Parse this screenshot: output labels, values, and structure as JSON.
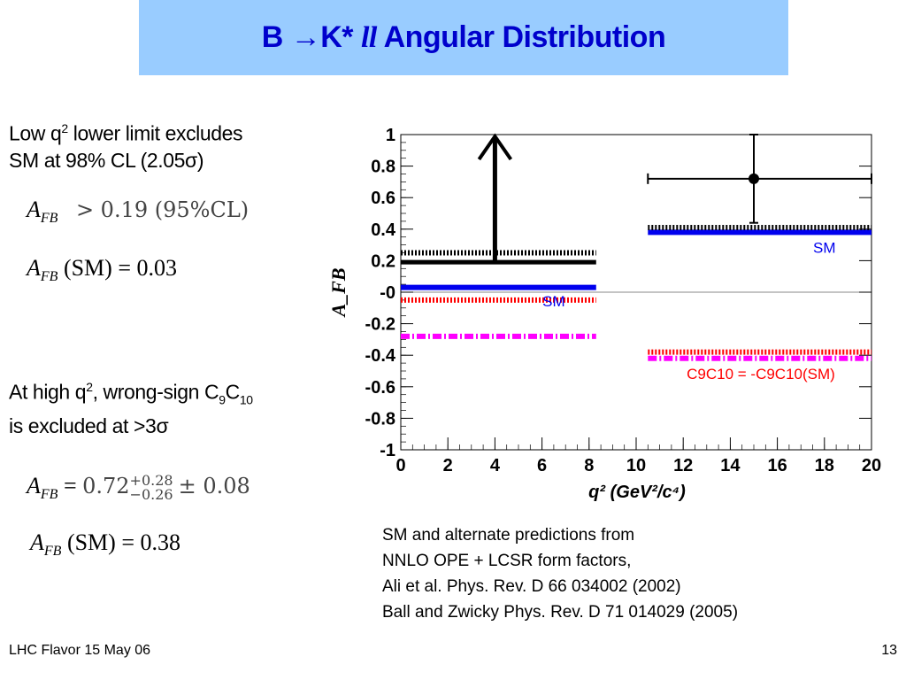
{
  "slide": {
    "title_prefix": "B →K* ",
    "title_ll": "ll",
    "title_suffix": " Angular Distribution",
    "block1_line1_a": "Low q",
    "block1_line1_sup": "2",
    "block1_line1_b": " lower limit excludes",
    "block1_line2": "SM at 98% CL (2.05σ)",
    "eq1_lhs": "A",
    "eq1_sub": "FB",
    "eq1_rhs": "> 0.19 (95%CL)",
    "eq2_lhs": "A",
    "eq2_sub": "FB",
    "eq2_rhs": "(SM) = 0.03",
    "block2_line1_a": "At high q",
    "block2_line1_sup": "2",
    "block2_line1_b": ", wrong-sign C",
    "block2_line1_sub1": "9",
    "block2_line1_c": "C",
    "block2_line1_sub2": "10",
    "block2_line2": "is excluded at >3σ",
    "eq3_lhs": "A",
    "eq3_sub": "FB",
    "eq3_eq": "=",
    "eq3_base": "0.72",
    "eq3_plus": "+0.28",
    "eq3_minus": "−0.26",
    "eq3_pm": "± 0.08",
    "eq4_lhs": "A",
    "eq4_sub": "FB",
    "eq4_rhs": "(SM) = 0.38",
    "refs": [
      "SM and alternate predictions from",
      "NNLO OPE + LCSR form factors,",
      "Ali et al. Phys. Rev. D 66 034002 (2002)",
      "Ball and Zwicky Phys. Rev. D 71 014029 (2005)"
    ],
    "footer_left": "LHC Flavor 15 May 06",
    "footer_right": "13"
  },
  "chart_data": {
    "type": "scatter",
    "ylabel": "A_FB",
    "xlabel": "q² (GeV²/c⁴)",
    "xlim": [
      0,
      20
    ],
    "ylim": [
      -1,
      1
    ],
    "x_ticks": [
      "0",
      "2",
      "4",
      "6",
      "8",
      "10",
      "12",
      "14",
      "16",
      "18",
      "20"
    ],
    "y_ticks": [
      "1",
      "0.8",
      "0.6",
      "0.4",
      "0.2",
      "-0",
      "-0.2",
      "-0.4",
      "-0.6",
      "-0.8",
      "-1"
    ],
    "y_tick_values": [
      1,
      0.8,
      0.6,
      0.4,
      0.2,
      0,
      -0.2,
      -0.4,
      -0.6,
      -0.8,
      -1
    ],
    "measurement_low": {
      "x_range": [
        0,
        8.3
      ],
      "y": 0.19,
      "arrow_to": 1.0,
      "arrow_x": 4,
      "color": "#000000"
    },
    "measurement_high": {
      "x": 15,
      "y": 0.72,
      "x_err": [
        10.5,
        20
      ],
      "y_err": [
        0.44,
        1.0
      ],
      "color": "#000000"
    },
    "predictions": [
      {
        "name": "SM",
        "x_range": [
          0,
          8.3
        ],
        "y": 0.03,
        "color": "#0000ee",
        "style": "solid"
      },
      {
        "name": "SM",
        "x_range": [
          10.5,
          20
        ],
        "y": 0.38,
        "color": "#0000ee",
        "style": "solid"
      },
      {
        "name": "",
        "x_range": [
          0,
          8.3
        ],
        "y": 0.25,
        "color": "#000000",
        "style": "dotted"
      },
      {
        "name": "",
        "x_range": [
          10.5,
          20
        ],
        "y": 0.41,
        "color": "#000000",
        "style": "dotted"
      },
      {
        "name": "C9C10 = -C9C10(SM)",
        "x_range": [
          0,
          8.3
        ],
        "y": -0.05,
        "color": "#ff0000",
        "style": "dotted"
      },
      {
        "name": "C9C10 = -C9C10(SM)",
        "x_range": [
          10.5,
          20
        ],
        "y": -0.38,
        "color": "#ff0000",
        "style": "dotted"
      },
      {
        "name": "",
        "x_range": [
          0,
          8.3
        ],
        "y": -0.28,
        "color": "#ff00ff",
        "style": "dashdot"
      },
      {
        "name": "",
        "x_range": [
          10.5,
          20
        ],
        "y": -0.42,
        "color": "#ff00ff",
        "style": "dashdot"
      }
    ],
    "annotations": [
      {
        "text": "SM",
        "x": 18,
        "y": 0.25,
        "color": "#0000ee"
      },
      {
        "text": "SM",
        "x": 6.5,
        "y": -0.09,
        "color": "#0000ee"
      },
      {
        "text": "C9C10 = -C9C10(SM)",
        "x": 15.3,
        "y": -0.55,
        "color": "#ff0000"
      }
    ]
  }
}
